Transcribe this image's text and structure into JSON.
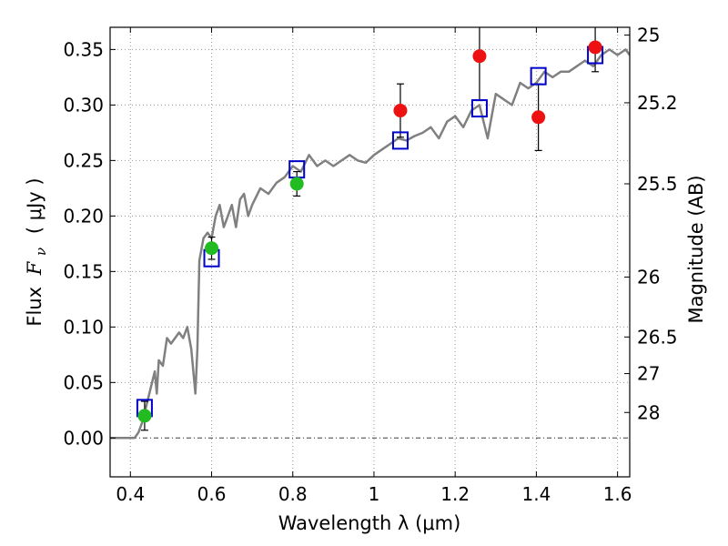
{
  "chart_data": {
    "type": "scatter",
    "xlabel": "Wavelength  λ (μm)",
    "ylabel": "Flux  F_ν ( μJy )",
    "ylabel_parts": {
      "prefix": "Flux ",
      "symbol": "F",
      "subscript": "ν",
      "unit": "( μJy )"
    },
    "y2label": "Magnitude (AB)",
    "xlim": [
      0.35,
      1.63
    ],
    "ylim": [
      -0.035,
      0.37
    ],
    "grid": true,
    "zero_line": true,
    "x_ticks": [
      0.4,
      0.6,
      0.8,
      1.0,
      1.2,
      1.4,
      1.6
    ],
    "x_tick_labels": [
      "0.4",
      "0.6",
      "0.8",
      "1",
      "1.2",
      "1.4",
      "1.6"
    ],
    "y_ticks": [
      0.0,
      0.05,
      0.1,
      0.15,
      0.2,
      0.25,
      0.3,
      0.35
    ],
    "y_tick_labels": [
      "0.00",
      "0.05",
      "0.10",
      "0.15",
      "0.20",
      "0.25",
      "0.30",
      "0.35"
    ],
    "magnitude_ticks": [
      {
        "label": "25",
        "flux": 0.363
      },
      {
        "label": "25.2",
        "flux": 0.302
      },
      {
        "label": "25.5",
        "flux": 0.229
      },
      {
        "label": "26",
        "flux": 0.145
      },
      {
        "label": "26.5",
        "flux": 0.091
      },
      {
        "label": "27",
        "flux": 0.058
      },
      {
        "label": "28",
        "flux": 0.023
      }
    ],
    "colors": {
      "model": "#808080",
      "model_photometry": "#0000cc",
      "observed_optical": "#22bb22",
      "observed_nir": "#ee1111",
      "errorbar": "#000000",
      "grid": "#999999"
    },
    "series": [
      {
        "kind": "model_spectrum",
        "x": [
          0.35,
          0.41,
          0.42,
          0.43,
          0.44,
          0.45,
          0.46,
          0.465,
          0.47,
          0.48,
          0.49,
          0.5,
          0.51,
          0.52,
          0.53,
          0.54,
          0.55,
          0.56,
          0.565,
          0.57,
          0.58,
          0.59,
          0.6,
          0.61,
          0.62,
          0.63,
          0.64,
          0.65,
          0.66,
          0.67,
          0.68,
          0.69,
          0.7,
          0.72,
          0.74,
          0.76,
          0.78,
          0.8,
          0.82,
          0.84,
          0.86,
          0.88,
          0.9,
          0.92,
          0.94,
          0.96,
          0.98,
          1.0,
          1.02,
          1.04,
          1.06,
          1.08,
          1.1,
          1.12,
          1.14,
          1.16,
          1.18,
          1.2,
          1.22,
          1.24,
          1.26,
          1.28,
          1.3,
          1.32,
          1.34,
          1.36,
          1.38,
          1.4,
          1.42,
          1.44,
          1.46,
          1.48,
          1.5,
          1.52,
          1.54,
          1.56,
          1.58,
          1.6,
          1.62,
          1.63
        ],
        "y": [
          0.0,
          0.0,
          0.005,
          0.015,
          0.03,
          0.045,
          0.06,
          0.04,
          0.07,
          0.065,
          0.09,
          0.085,
          0.09,
          0.095,
          0.09,
          0.1,
          0.08,
          0.04,
          0.08,
          0.16,
          0.18,
          0.185,
          0.18,
          0.2,
          0.21,
          0.19,
          0.2,
          0.21,
          0.19,
          0.215,
          0.22,
          0.2,
          0.21,
          0.225,
          0.22,
          0.23,
          0.235,
          0.245,
          0.24,
          0.255,
          0.245,
          0.25,
          0.245,
          0.25,
          0.255,
          0.25,
          0.248,
          0.255,
          0.26,
          0.265,
          0.27,
          0.268,
          0.272,
          0.275,
          0.28,
          0.27,
          0.285,
          0.29,
          0.28,
          0.295,
          0.3,
          0.27,
          0.31,
          0.305,
          0.3,
          0.32,
          0.315,
          0.32,
          0.33,
          0.325,
          0.33,
          0.33,
          0.335,
          0.34,
          0.335,
          0.345,
          0.35,
          0.345,
          0.35,
          0.345
        ]
      },
      {
        "kind": "model_photometry",
        "x": [
          0.435,
          0.6,
          0.81,
          1.065,
          1.26,
          1.405,
          1.545
        ],
        "y": [
          0.027,
          0.162,
          0.242,
          0.268,
          0.297,
          0.326,
          0.345
        ]
      },
      {
        "kind": "observed_optical",
        "x": [
          0.435,
          0.6,
          0.81
        ],
        "y": [
          0.02,
          0.171,
          0.229
        ],
        "err": [
          0.013,
          0.01,
          0.011
        ]
      },
      {
        "kind": "observed_nir",
        "x": [
          1.065,
          1.26,
          1.405,
          1.545
        ],
        "y": [
          0.295,
          0.344,
          0.289,
          0.352
        ],
        "err": [
          0.024,
          0.04,
          0.03,
          0.022
        ]
      }
    ]
  }
}
